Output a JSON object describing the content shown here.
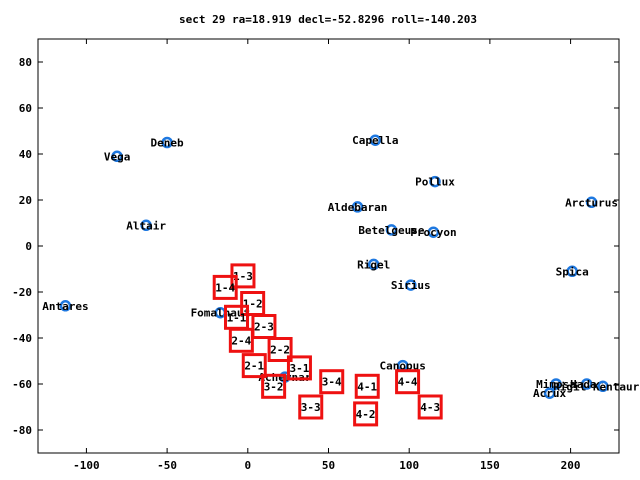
{
  "chart_data": {
    "type": "scatter",
    "title": "sect 29 ra=18.919 decl=-52.8296 roll=-140.203",
    "xlabel": "",
    "ylabel": "",
    "xlim": [
      -130,
      230
    ],
    "ylim": [
      -90,
      90
    ],
    "xticks": [
      -100,
      -50,
      0,
      50,
      100,
      150,
      200
    ],
    "yticks": [
      -80,
      -60,
      -40,
      -20,
      0,
      20,
      40,
      60,
      80
    ],
    "grid": false,
    "colors": {
      "star": "#1e78e0",
      "box": "#ee1111",
      "axis": "#000000"
    },
    "stars": [
      {
        "name": "Vega",
        "x": -81,
        "y": 39
      },
      {
        "name": "Deneb",
        "x": -50,
        "y": 45
      },
      {
        "name": "Capella",
        "x": 79,
        "y": 46
      },
      {
        "name": "Pollux",
        "x": 116,
        "y": 28
      },
      {
        "name": "Arcturus",
        "x": 213,
        "y": 19
      },
      {
        "name": "Aldebaran",
        "x": 68,
        "y": 17
      },
      {
        "name": "Altair",
        "x": -63,
        "y": 9
      },
      {
        "name": "Betelgeuse",
        "x": 89,
        "y": 7
      },
      {
        "name": "Procyon",
        "x": 115,
        "y": 6
      },
      {
        "name": "Rigel",
        "x": 78,
        "y": -8
      },
      {
        "name": "Spica",
        "x": 201,
        "y": -11
      },
      {
        "name": "Sirius",
        "x": 101,
        "y": -17
      },
      {
        "name": "Antares",
        "x": -113,
        "y": -26
      },
      {
        "name": "Fomalhaut",
        "x": -17,
        "y": -29
      },
      {
        "name": "Achernar",
        "x": 23,
        "y": -57
      },
      {
        "name": "Canopus",
        "x": 96,
        "y": -52
      },
      {
        "name": "Mimosa",
        "x": 191,
        "y": -60
      },
      {
        "name": "Hadar",
        "x": 210,
        "y": -60
      },
      {
        "name": "Rigil Kentaurus",
        "x": 220,
        "y": -61
      },
      {
        "name": "Acrux",
        "x": 187,
        "y": -64
      }
    ],
    "boxes": [
      {
        "label": "1-3",
        "x": -3,
        "y": -13
      },
      {
        "label": "1-4",
        "x": -14,
        "y": -18
      },
      {
        "label": "1-2",
        "x": 3,
        "y": -25
      },
      {
        "label": "1-1",
        "x": -7,
        "y": -31
      },
      {
        "label": "2-3",
        "x": 10,
        "y": -35
      },
      {
        "label": "2-4",
        "x": -4,
        "y": -41
      },
      {
        "label": "2-2",
        "x": 20,
        "y": -45
      },
      {
        "label": "2-1",
        "x": 4,
        "y": -52
      },
      {
        "label": "3-1",
        "x": 32,
        "y": -53
      },
      {
        "label": "3-2",
        "x": 16,
        "y": -61
      },
      {
        "label": "3-4",
        "x": 52,
        "y": -59
      },
      {
        "label": "4-1",
        "x": 74,
        "y": -61
      },
      {
        "label": "4-4",
        "x": 99,
        "y": -59
      },
      {
        "label": "3-3",
        "x": 39,
        "y": -70
      },
      {
        "label": "4-2",
        "x": 73,
        "y": -73
      },
      {
        "label": "4-3",
        "x": 113,
        "y": -70
      }
    ]
  }
}
